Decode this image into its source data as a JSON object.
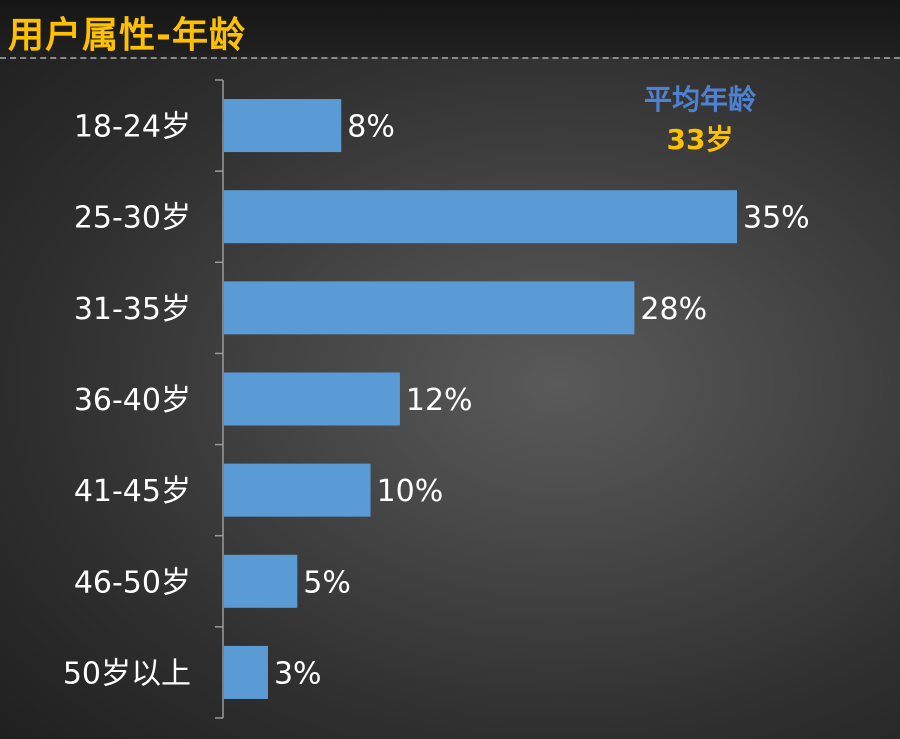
{
  "title": "用户属性-年龄",
  "annotation": {
    "label": "平均年龄",
    "value": "33岁"
  },
  "colors": {
    "title": "#ffc000",
    "bar": "#5b9bd5",
    "annotation_label": "#4f81d3",
    "annotation_value": "#ffc000",
    "text": "#ffffff",
    "axis": "#9a9a9a"
  },
  "chart_data": {
    "type": "bar",
    "orientation": "horizontal",
    "title": "",
    "xlabel": "",
    "ylabel": "",
    "categories": [
      "18-24岁",
      "25-30岁",
      "31-35岁",
      "36-40岁",
      "41-45岁",
      "46-50岁",
      "50岁以上"
    ],
    "values": [
      8,
      35,
      28,
      12,
      10,
      5,
      3
    ],
    "data_labels": [
      "8%",
      "35%",
      "28%",
      "12%",
      "10%",
      "5%",
      "3%"
    ],
    "unit": "%",
    "xlim": [
      0,
      35
    ],
    "grid": false,
    "legend": "none"
  }
}
